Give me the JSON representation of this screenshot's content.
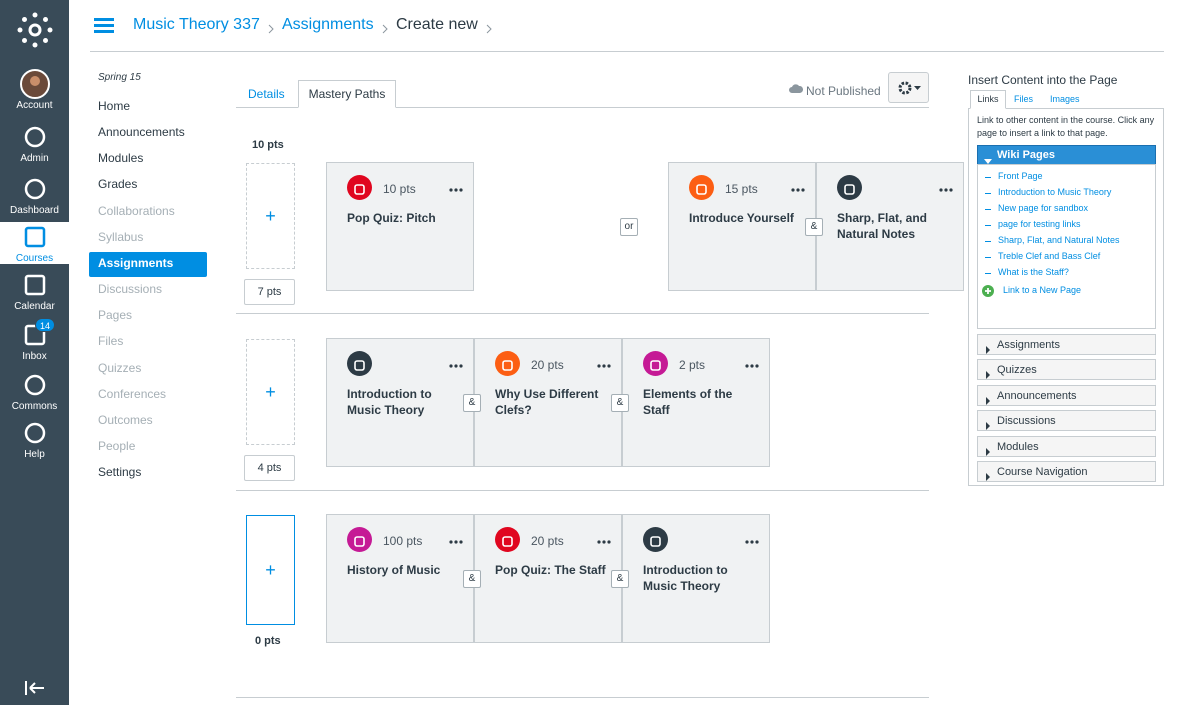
{
  "global_nav": [
    {
      "label": "Account"
    },
    {
      "label": "Admin"
    },
    {
      "label": "Dashboard"
    },
    {
      "label": "Courses",
      "active": true
    },
    {
      "label": "Calendar"
    },
    {
      "label": "Inbox",
      "badge": "14"
    },
    {
      "label": "Commons"
    },
    {
      "label": "Help"
    }
  ],
  "breadcrumb": [
    "Music Theory 337",
    "Assignments",
    "Create new"
  ],
  "course_nav": {
    "term": "Spring 15",
    "items": [
      {
        "label": "Home"
      },
      {
        "label": "Announcements"
      },
      {
        "label": "Modules"
      },
      {
        "label": "Grades"
      },
      {
        "label": "Collaborations",
        "hidden": true
      },
      {
        "label": "Syllabus",
        "hidden": true
      },
      {
        "label": "Assignments",
        "active": true
      },
      {
        "label": "Discussions",
        "hidden": true
      },
      {
        "label": "Pages",
        "hidden": true
      },
      {
        "label": "Files",
        "hidden": true
      },
      {
        "label": "Quizzes",
        "hidden": true
      },
      {
        "label": "Conferences",
        "hidden": true
      },
      {
        "label": "Outcomes",
        "hidden": true
      },
      {
        "label": "People",
        "hidden": true
      },
      {
        "label": "Settings"
      }
    ]
  },
  "tabs": [
    "Details",
    "Mastery Paths"
  ],
  "status": "Not Published",
  "and_label": "&",
  "or_label": "or",
  "rows": [
    {
      "top_label": "10 pts",
      "bottom_label": "7 pts",
      "sets": [
        {
          "items": [
            {
              "points": "10 pts",
              "title": "Pop Quiz: Pitch",
              "color": "#e0061f"
            }
          ]
        },
        {
          "items": [
            {
              "points": "15 pts",
              "title": "Introduce Yourself",
              "color": "#fc5e13"
            },
            {
              "title": "Sharp, Flat, and Natural Notes",
              "color": "#2d3b45"
            }
          ]
        }
      ]
    },
    {
      "bottom_label": "4 pts",
      "sets": [
        {
          "items": [
            {
              "title": "Introduction to Music Theory",
              "color": "#2d3b45"
            },
            {
              "points": "20 pts",
              "title": "Why Use Different Clefs?",
              "color": "#fc5e13"
            },
            {
              "points": "2 pts",
              "title": "Elements of the Staff",
              "color": "#c51a95"
            }
          ]
        }
      ]
    },
    {
      "bottom_label": "0 pts",
      "sets": [
        {
          "items": [
            {
              "points": "100 pts",
              "title": "History of Music",
              "color": "#c51a95"
            },
            {
              "points": "20 pts",
              "title": "Pop Quiz: The Staff",
              "color": "#e0061f"
            },
            {
              "title": "Introduction to Music Theory",
              "color": "#2d3b45"
            }
          ]
        }
      ]
    }
  ],
  "sidebar": {
    "title": "Insert Content into the Page",
    "tabs": [
      "Links",
      "Files",
      "Images"
    ],
    "description": "Link to other content in the course. Click any page to insert a link to that page.",
    "open_section": "Wiki Pages",
    "pages": [
      "Front Page",
      "Introduction to Music Theory",
      "New page for sandbox",
      "page for testing links",
      "Sharp, Flat, and Natural Notes",
      "Treble Clef and Bass Clef",
      "What is the Staff?"
    ],
    "new_page": "Link to a New Page",
    "sections": [
      "Assignments",
      "Quizzes",
      "Announcements",
      "Discussions",
      "Modules",
      "Course Navigation"
    ]
  }
}
